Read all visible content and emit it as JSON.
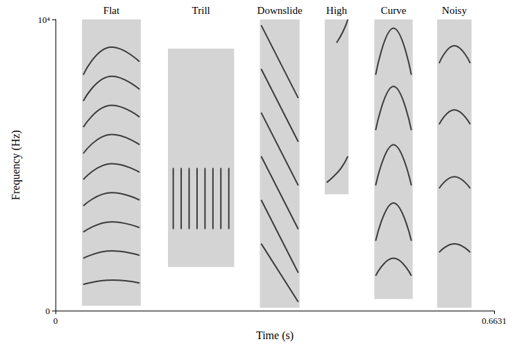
{
  "chart_data": {
    "type": "spectrogram",
    "xlabel": "Time (s)",
    "ylabel": "Frequency (Hz)",
    "xlim": [
      0,
      0.6631
    ],
    "xticks": [
      0,
      0.6631
    ],
    "ylim": [
      0,
      10000
    ],
    "yticks": [
      0,
      {
        "value": 10000,
        "label": "10⁴"
      }
    ],
    "grid": false,
    "color": "#3a3a3a",
    "calls": [
      {
        "name": "Flat",
        "time": [
          0.04,
          0.129
        ],
        "frequency": [
          170,
          10000
        ],
        "contours": [
          [
            [
              0.042,
              900
            ],
            [
              0.085,
              1050
            ],
            [
              0.127,
              950
            ]
          ],
          [
            [
              0.042,
              1800
            ],
            [
              0.085,
              2050
            ],
            [
              0.127,
              1900
            ]
          ],
          [
            [
              0.042,
              2700
            ],
            [
              0.085,
              3050
            ],
            [
              0.127,
              2850
            ]
          ],
          [
            [
              0.042,
              3600
            ],
            [
              0.085,
              4050
            ],
            [
              0.127,
              3800
            ]
          ],
          [
            [
              0.042,
              4500
            ],
            [
              0.085,
              5050
            ],
            [
              0.127,
              4750
            ]
          ],
          [
            [
              0.042,
              5400
            ],
            [
              0.085,
              6050
            ],
            [
              0.127,
              5700
            ]
          ],
          [
            [
              0.042,
              6300
            ],
            [
              0.085,
              7050
            ],
            [
              0.127,
              6650
            ]
          ],
          [
            [
              0.042,
              7200
            ],
            [
              0.085,
              8050
            ],
            [
              0.127,
              7600
            ]
          ],
          [
            [
              0.042,
              8100
            ],
            [
              0.085,
              9050
            ],
            [
              0.127,
              8550
            ]
          ]
        ]
      },
      {
        "name": "Trill",
        "time": [
          0.17,
          0.27
        ],
        "frequency": [
          1500,
          9000
        ],
        "contours": [
          [
            [
              0.178,
              2800
            ],
            [
              0.178,
              4900
            ]
          ],
          [
            [
              0.19,
              2800
            ],
            [
              0.19,
              4900
            ]
          ],
          [
            [
              0.202,
              2800
            ],
            [
              0.202,
              4900
            ]
          ],
          [
            [
              0.214,
              2800
            ],
            [
              0.214,
              4900
            ]
          ],
          [
            [
              0.226,
              2800
            ],
            [
              0.226,
              4900
            ]
          ],
          [
            [
              0.238,
              2800
            ],
            [
              0.238,
              4900
            ]
          ],
          [
            [
              0.25,
              2800
            ],
            [
              0.25,
              4900
            ]
          ],
          [
            [
              0.262,
              2800
            ],
            [
              0.262,
              4900
            ]
          ]
        ]
      },
      {
        "name": "Downslide",
        "time": [
          0.309,
          0.369
        ],
        "frequency": [
          100,
          10000
        ],
        "contours": [
          [
            [
              0.311,
              9800
            ],
            [
              0.367,
              7300
            ]
          ],
          [
            [
              0.311,
              8300
            ],
            [
              0.367,
              5800
            ]
          ],
          [
            [
              0.311,
              6800
            ],
            [
              0.367,
              4300
            ]
          ],
          [
            [
              0.311,
              5300
            ],
            [
              0.367,
              2800
            ]
          ],
          [
            [
              0.311,
              3800
            ],
            [
              0.367,
              1300
            ]
          ],
          [
            [
              0.311,
              2300
            ],
            [
              0.367,
              300
            ]
          ]
        ]
      },
      {
        "name": "High",
        "time": [
          0.407,
          0.443
        ],
        "frequency": [
          4000,
          10000
        ],
        "contours": [
          [
            [
              0.41,
              4400
            ],
            [
              0.42,
              4600
            ],
            [
              0.432,
              4900
            ],
            [
              0.442,
              5300
            ]
          ],
          [
            [
              0.425,
              9200
            ],
            [
              0.435,
              9600
            ],
            [
              0.442,
              10000
            ]
          ]
        ]
      },
      {
        "name": "Curve",
        "time": [
          0.482,
          0.54
        ],
        "frequency": [
          400,
          10000
        ],
        "contours": [
          [
            [
              0.484,
              1200
            ],
            [
              0.511,
              1800
            ],
            [
              0.538,
              1200
            ]
          ],
          [
            [
              0.484,
              2400
            ],
            [
              0.511,
              3700
            ],
            [
              0.538,
              2400
            ]
          ],
          [
            [
              0.484,
              4300
            ],
            [
              0.511,
              5700
            ],
            [
              0.538,
              4300
            ]
          ],
          [
            [
              0.484,
              6200
            ],
            [
              0.511,
              7700
            ],
            [
              0.538,
              6200
            ]
          ],
          [
            [
              0.484,
              8100
            ],
            [
              0.511,
              9700
            ],
            [
              0.538,
              8100
            ]
          ]
        ]
      },
      {
        "name": "Noisy",
        "time": [
          0.577,
          0.629
        ],
        "frequency": [
          100,
          10000
        ],
        "contours": [
          [
            [
              0.58,
              2000
            ],
            [
              0.603,
              2300
            ],
            [
              0.627,
              2000
            ]
          ],
          [
            [
              0.58,
              4200
            ],
            [
              0.603,
              4600
            ],
            [
              0.627,
              4200
            ]
          ],
          [
            [
              0.58,
              6400
            ],
            [
              0.603,
              6900
            ],
            [
              0.627,
              6400
            ]
          ],
          [
            [
              0.58,
              8500
            ],
            [
              0.603,
              9100
            ],
            [
              0.627,
              8500
            ]
          ]
        ]
      }
    ]
  }
}
